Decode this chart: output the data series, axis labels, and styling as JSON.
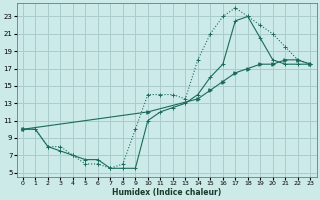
{
  "xlabel": "Humidex (Indice chaleur)",
  "bg_color": "#cceae8",
  "grid_color": "#aacccc",
  "line_color": "#1a6b5a",
  "xlim": [
    -0.5,
    23.5
  ],
  "ylim": [
    4.5,
    24.5
  ],
  "xticks": [
    0,
    1,
    2,
    3,
    4,
    5,
    6,
    7,
    8,
    9,
    10,
    11,
    12,
    13,
    14,
    15,
    16,
    17,
    18,
    19,
    20,
    21,
    22,
    23
  ],
  "yticks": [
    5,
    7,
    9,
    11,
    13,
    15,
    17,
    19,
    21,
    23
  ],
  "curve1_x": [
    0,
    1,
    2,
    3,
    4,
    5,
    6,
    7,
    8,
    9,
    10,
    11,
    12,
    13,
    14,
    15,
    16,
    17,
    18,
    19,
    20,
    21,
    22,
    23
  ],
  "curve1_y": [
    10,
    10,
    8,
    8,
    7,
    6,
    6,
    5.5,
    6,
    10,
    14,
    14,
    14,
    13.5,
    18,
    21,
    23,
    24,
    23,
    22,
    21,
    19.5,
    18,
    17.5
  ],
  "curve2_x": [
    0,
    1,
    2,
    3,
    4,
    5,
    6,
    7,
    8,
    9,
    10,
    11,
    12,
    13,
    14,
    15,
    16,
    17,
    18,
    19,
    20,
    21,
    22,
    23
  ],
  "curve2_y": [
    10,
    10,
    8,
    7.5,
    7,
    6.5,
    6.5,
    5.5,
    5.5,
    5.5,
    11,
    12,
    12.5,
    13,
    14,
    16,
    17.5,
    22.5,
    23,
    20.5,
    18,
    17.5,
    17.5,
    17.5
  ],
  "curve3_x": [
    0,
    10,
    14,
    15,
    16,
    17,
    18,
    19,
    20,
    21,
    22,
    23
  ],
  "curve3_y": [
    10,
    12,
    13.5,
    14.5,
    15.5,
    16.5,
    17,
    17.5,
    17.5,
    18,
    18,
    17.5
  ]
}
